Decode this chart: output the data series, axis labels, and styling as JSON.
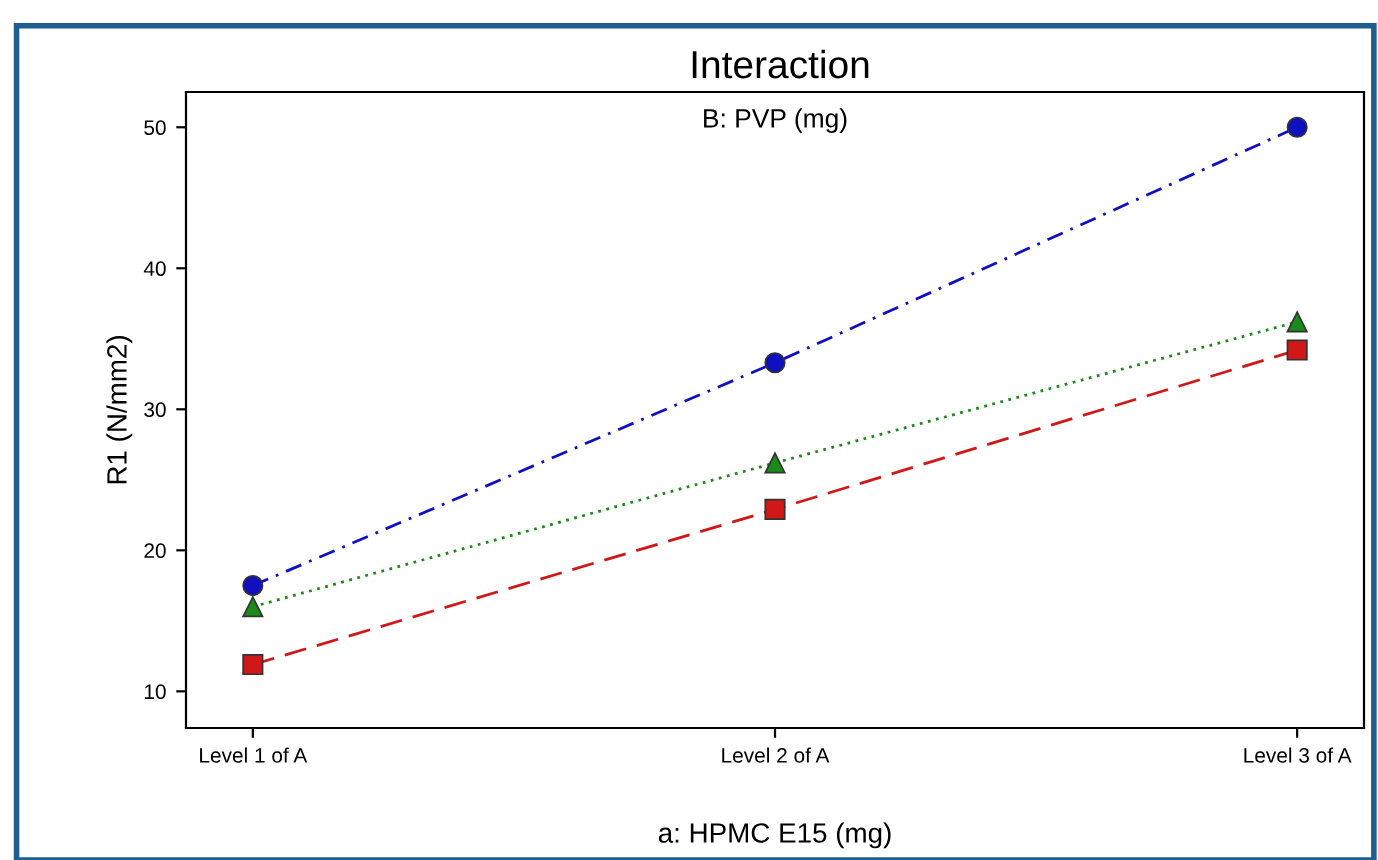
{
  "chart_data": {
    "type": "line",
    "title": "Interaction",
    "subtitle": "B: PVP (mg)",
    "xlabel": "a: HPMC E15 (mg)",
    "ylabel": "R1 (N/mm2)",
    "categories": [
      "Level 1 of A",
      "Level 2 of A",
      "Level 3 of A"
    ],
    "series": [
      {
        "color": "#1010c0",
        "values": [
          17.5,
          33.3,
          50
        ],
        "marker": "circle",
        "line_style": "dashdot"
      },
      {
        "color": "#1a8a1a",
        "values": [
          16.0,
          26.2,
          36.2
        ],
        "marker": "triangle",
        "line_style": "dotted"
      },
      {
        "color": "#d01818",
        "values": [
          11.9,
          22.9,
          34.2
        ],
        "marker": "square",
        "line_style": "dashed"
      }
    ],
    "ylim": [
      7.4,
      52.5
    ],
    "yticks": [
      10,
      20,
      30,
      40,
      50
    ],
    "grid": false
  }
}
